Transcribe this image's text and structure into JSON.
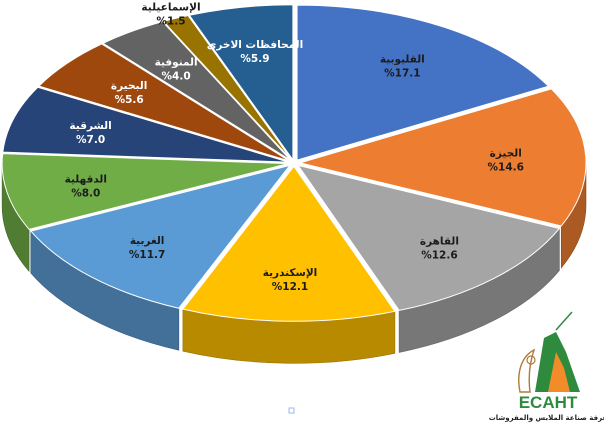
{
  "chart_data": {
    "type": "pie",
    "categories": [
      "القليوبية",
      "الجيزة",
      "القاهرة",
      "الإسكندرية",
      "الغربية",
      "الدقهلية",
      "الشرقية",
      "البحيرة",
      "المنوفية",
      "الإسماعيلية",
      "المحافظات الاخرى"
    ],
    "values": [
      17.1,
      14.6,
      12.6,
      12.1,
      11.7,
      8.0,
      7.0,
      5.6,
      4.0,
      1.5,
      5.9
    ],
    "value_labels": [
      "%17.1",
      "%14.6",
      "%12.6",
      "%12.1",
      "%11.7",
      "%8.0",
      "%7.0",
      "%5.6",
      "%4.0",
      "%1.5",
      "%5.9"
    ],
    "colors": [
      "#4472C4",
      "#ED7D31",
      "#A5A5A5",
      "#FFC000",
      "#5B9BD5",
      "#70AD47",
      "#264478",
      "#9E480E",
      "#636363",
      "#997300",
      "#255E91"
    ],
    "style": "3d-exploded",
    "title": "",
    "legend": "none"
  },
  "logo": {
    "text": "ECAHT",
    "subtitle": "غرفة صناعة الملابس والمفروشات"
  }
}
